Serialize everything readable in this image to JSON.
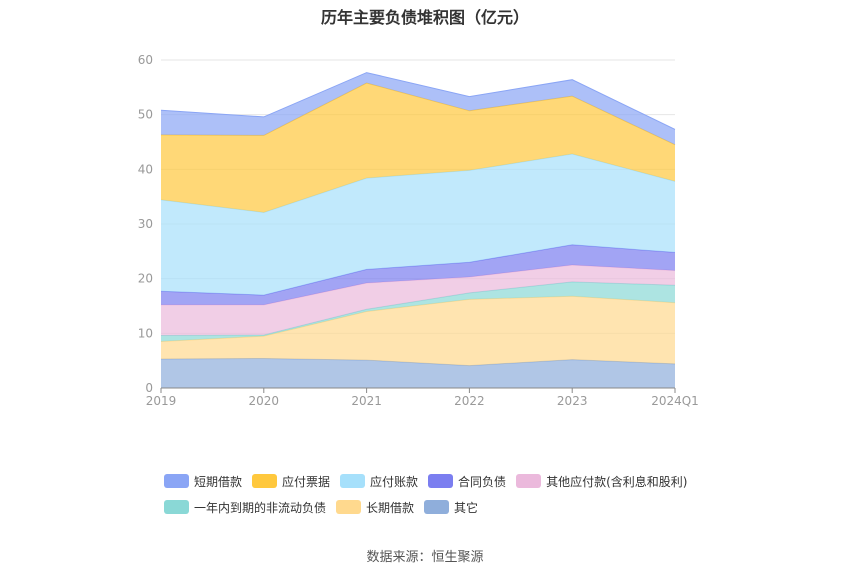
{
  "chart_data": {
    "type": "area",
    "stacked": true,
    "title": "历年主要负债堆积图（亿元）",
    "categories": [
      "2019",
      "2020",
      "2021",
      "2022",
      "2023",
      "2024Q1"
    ],
    "ylim": [
      0,
      60
    ],
    "yticks": [
      "0",
      "10",
      "20",
      "30",
      "40",
      "50",
      "60"
    ],
    "grid": true,
    "legend_position": "bottom",
    "series": [
      {
        "name": "其它",
        "color": "#8faedb",
        "values": [
          5.3,
          5.4,
          5.1,
          4.1,
          5.2,
          4.4
        ]
      },
      {
        "name": "长期借款",
        "color": "#ffd98e",
        "values": [
          3.2,
          4.1,
          8.9,
          12.1,
          11.6,
          11.2
        ]
      },
      {
        "name": "一年内到期的非流动负债",
        "color": "#8ad8d6",
        "values": [
          1.1,
          0.2,
          0.4,
          1.2,
          2.6,
          3.2
        ]
      },
      {
        "name": "其他应付款(含利息和股利)",
        "color": "#ebb9dc",
        "values": [
          5.6,
          5.5,
          4.8,
          2.9,
          3.1,
          2.7
        ]
      },
      {
        "name": "合同负债",
        "color": "#7b7ef0",
        "values": [
          2.5,
          1.8,
          2.5,
          2.7,
          3.7,
          3.3
        ]
      },
      {
        "name": "应付账款",
        "color": "#a6e0fb",
        "values": [
          16.7,
          15.1,
          16.7,
          16.8,
          16.6,
          13.0
        ]
      },
      {
        "name": "应付票据",
        "color": "#ffc83d",
        "values": [
          11.9,
          14.1,
          17.4,
          10.9,
          10.6,
          6.7
        ]
      },
      {
        "name": "短期借款",
        "color": "#8aa5f5",
        "values": [
          4.5,
          3.4,
          1.9,
          2.6,
          3.0,
          2.8
        ]
      }
    ]
  },
  "legend": {
    "rows": [
      [
        {
          "label": "短期借款",
          "color": "#8aa5f5"
        },
        {
          "label": "应付票据",
          "color": "#ffc83d"
        },
        {
          "label": "应付账款",
          "color": "#a6e0fb"
        },
        {
          "label": "合同负债",
          "color": "#7b7ef0"
        },
        {
          "label": "其他应付款(含利息和股利)",
          "color": "#ebb9dc"
        }
      ],
      [
        {
          "label": "一年内到期的非流动负债",
          "color": "#8ad8d6"
        },
        {
          "label": "长期借款",
          "color": "#ffd98e"
        },
        {
          "label": "其它",
          "color": "#8faedb"
        }
      ]
    ]
  },
  "source": "数据来源：恒生聚源"
}
